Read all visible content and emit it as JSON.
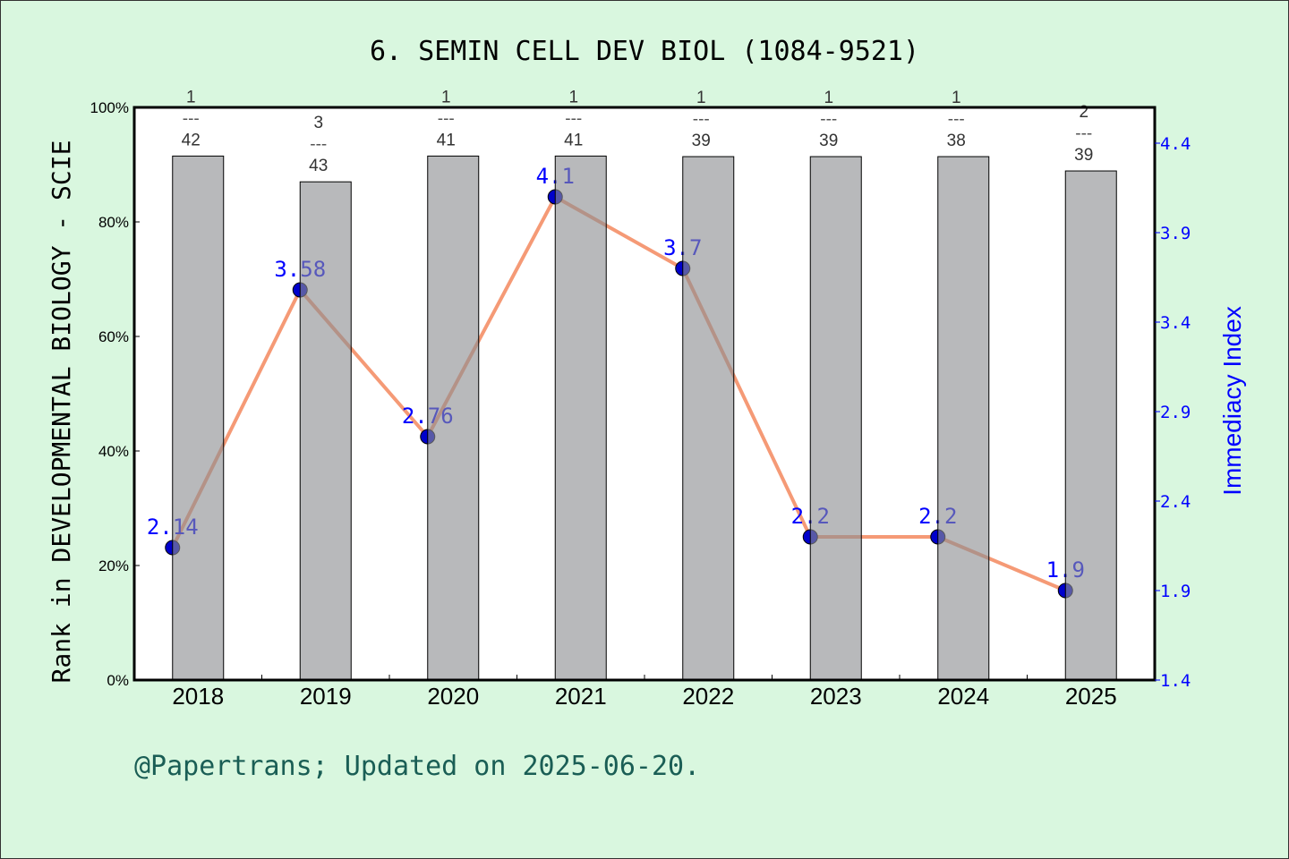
{
  "chart_data": {
    "type": "bar+line",
    "title": "6. SEMIN CELL DEV BIOL (1084-9521)",
    "ylabel_left": "Rank in DEVELOPMENTAL BIOLOGY - SCIE",
    "ylabel_right": "Immediacy Index",
    "categories": [
      "2018",
      "2019",
      "2020",
      "2021",
      "2022",
      "2023",
      "2024",
      "2025"
    ],
    "bar_values_percent": [
      91.5,
      87.0,
      91.5,
      91.5,
      91.4,
      91.4,
      91.4,
      88.9
    ],
    "rank_labels": [
      {
        "rank": "1",
        "total": "42"
      },
      {
        "rank": "3",
        "total": "43"
      },
      {
        "rank": "1",
        "total": "41"
      },
      {
        "rank": "1",
        "total": "41"
      },
      {
        "rank": "1",
        "total": "39"
      },
      {
        "rank": "1",
        "total": "39"
      },
      {
        "rank": "1",
        "total": "38"
      },
      {
        "rank": "2",
        "total": "39"
      }
    ],
    "line_values": [
      2.14,
      3.58,
      2.76,
      4.1,
      3.7,
      2.2,
      2.2,
      1.9
    ],
    "line_labels": [
      "2.14",
      "3.58",
      "2.76",
      "4.1",
      "3.7",
      "2.2",
      "2.2",
      "1.9"
    ],
    "ylim_left": [
      0,
      100
    ],
    "yticks_left": [
      "0%",
      "20%",
      "40%",
      "60%",
      "80%",
      "100%"
    ],
    "ylim_right": [
      1.4,
      4.6
    ],
    "yticks_right": [
      "1.4",
      "1.9",
      "2.4",
      "2.9",
      "3.4",
      "3.9",
      "4.4"
    ],
    "colors": {
      "background": "#d9f7df",
      "bar": "#b8b9ba",
      "line": "#f59a76",
      "point": "#0000cc",
      "right_axis": "#0000ff",
      "footer": "#1a5e55"
    }
  },
  "footer": "@Papertrans; Updated on 2025-06-20."
}
